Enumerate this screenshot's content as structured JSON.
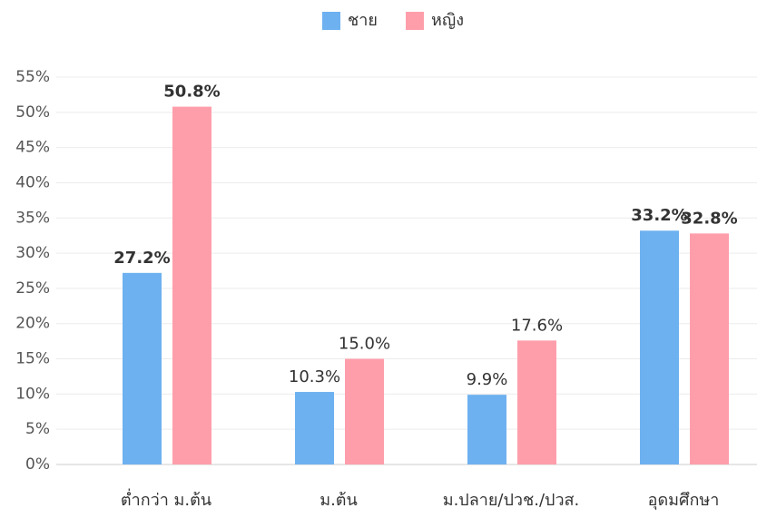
{
  "chart_data": {
    "type": "bar",
    "categories": [
      "ต่ำกว่า ม.ต้น",
      "ม.ต้น",
      "ม.ปลาย/ปวช./ปวส.",
      "อุดมศึกษา"
    ],
    "series": [
      {
        "name": "ชาย",
        "color": "#6eb1f0",
        "values": [
          27.2,
          10.3,
          9.9,
          33.2
        ],
        "value_labels": [
          "27.2%",
          "10.3%",
          "9.9%",
          "33.2%"
        ]
      },
      {
        "name": "หญิง",
        "color": "#ff9eab",
        "values": [
          50.8,
          15.0,
          17.6,
          32.8
        ],
        "value_labels": [
          "50.8%",
          "15.0%",
          "17.6%",
          "32.8%"
        ]
      }
    ],
    "ylim": [
      0,
      55
    ],
    "yticks": [
      {
        "value": 0,
        "label": "0%"
      },
      {
        "value": 5,
        "label": "5%"
      },
      {
        "value": 10,
        "label": "10%"
      },
      {
        "value": 15,
        "label": "15%"
      },
      {
        "value": 20,
        "label": "20%"
      },
      {
        "value": 25,
        "label": "25%"
      },
      {
        "value": 30,
        "label": "30%"
      },
      {
        "value": 35,
        "label": "35%"
      },
      {
        "value": 40,
        "label": "40%"
      },
      {
        "value": 45,
        "label": "45%"
      },
      {
        "value": 50,
        "label": "50%"
      },
      {
        "value": 55,
        "label": "55%"
      }
    ],
    "grid": true,
    "legend": "top"
  }
}
